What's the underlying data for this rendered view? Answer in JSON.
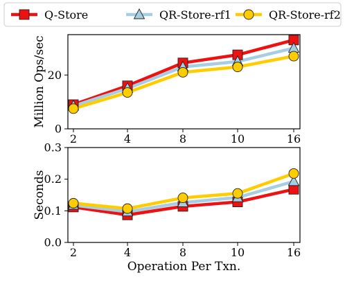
{
  "chart_data": [
    {
      "type": "line",
      "ylabel": "Million Ops/sec",
      "xlabel": "",
      "categories": [
        "2",
        "4",
        "8",
        "10",
        "16"
      ],
      "ylim": [
        0,
        35
      ],
      "yticks": [
        "0",
        "20"
      ],
      "series": [
        {
          "name": "Q-Store",
          "values": [
            9,
            16,
            24.5,
            27.5,
            33
          ],
          "color": "#ee1111",
          "marker": "square"
        },
        {
          "name": "QR-Store-rf1",
          "values": [
            8.5,
            15,
            23,
            25,
            30
          ],
          "color": "#a6cee3",
          "marker": "triangle"
        },
        {
          "name": "QR-Store-rf2",
          "values": [
            7.5,
            13.5,
            21,
            23,
            27
          ],
          "color": "#ffcc00",
          "marker": "circle"
        }
      ]
    },
    {
      "type": "line",
      "ylabel": "Seconds",
      "xlabel": "Operation Per Txn.",
      "categories": [
        "2",
        "4",
        "8",
        "10",
        "16"
      ],
      "ylim": [
        0.0,
        0.3
      ],
      "yticks": [
        "0.0",
        "0.1",
        "0.2",
        "0.3"
      ],
      "series": [
        {
          "name": "Q-Store",
          "values": [
            0.112,
            0.087,
            0.114,
            0.128,
            0.168
          ],
          "color": "#ee1111",
          "marker": "square"
        },
        {
          "name": "QR-Store-rf1",
          "values": [
            0.118,
            0.097,
            0.126,
            0.142,
            0.193
          ],
          "color": "#a6cee3",
          "marker": "triangle"
        },
        {
          "name": "QR-Store-rf2",
          "values": [
            0.124,
            0.107,
            0.141,
            0.155,
            0.218
          ],
          "color": "#ffcc00",
          "marker": "circle"
        }
      ]
    }
  ],
  "legend": {
    "placement": "top",
    "items": [
      "Q-Store",
      "QR-Store-rf1",
      "QR-Store-rf2"
    ]
  }
}
